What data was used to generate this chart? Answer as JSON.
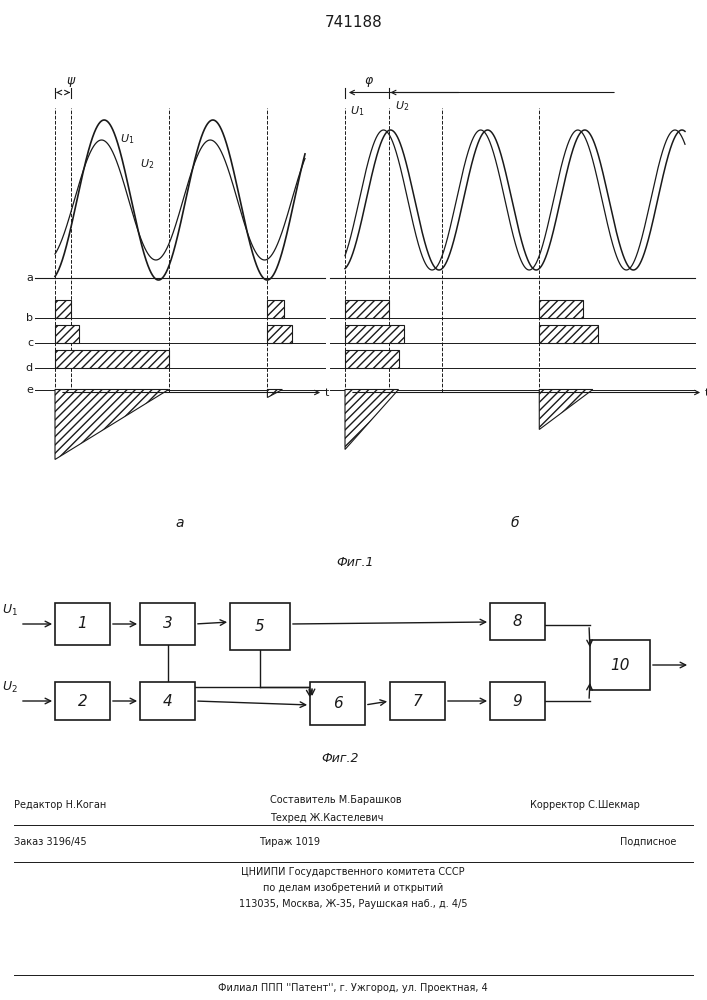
{
  "title": "741188",
  "bg_color": "#ffffff",
  "lc": "#1a1a1a",
  "fig1_label": "Фиг.1",
  "fig2_label": "Фиг.2",
  "panel_a_label": "a",
  "panel_b_label": "б"
}
